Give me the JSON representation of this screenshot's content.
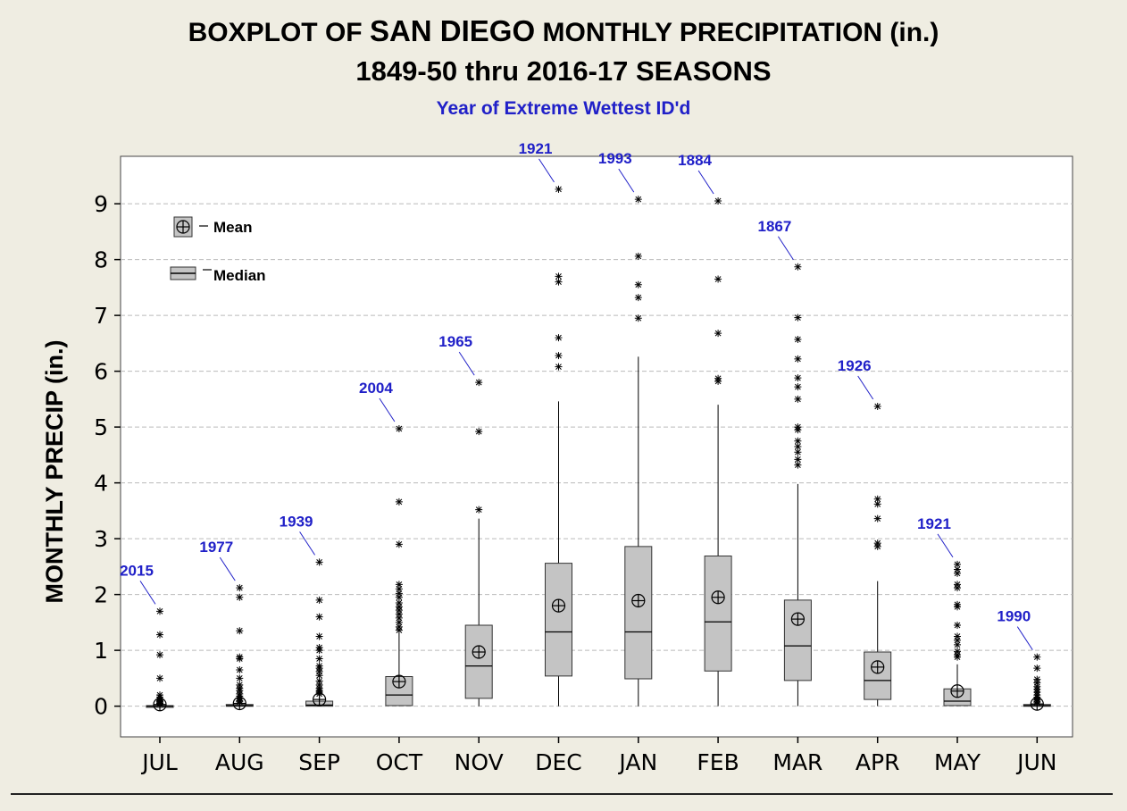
{
  "header": {
    "title_part1": "BOXPLOT OF ",
    "title_city": "SAN DIEGO",
    "title_part2": " MONTHLY PRECIPITATION (in.)",
    "subtitle": "1849-50 thru 2016-17 SEASONS",
    "note": "Year of Extreme Wettest ID'd"
  },
  "legend": {
    "mean_label": "Mean",
    "median_label": "Median"
  },
  "colors": {
    "background": "#efede2",
    "plot_bg": "#ffffff",
    "box_fill": "#c4c4c4",
    "annotation": "#2020c8",
    "grid": "#bbbbbb"
  },
  "chart_data": {
    "type": "boxplot",
    "ylabel": "MONTHLY PRECIP (in.)",
    "xlabel": "",
    "ylim": [
      -0.55,
      9.85
    ],
    "yticks": [
      0,
      1,
      2,
      3,
      4,
      5,
      6,
      7,
      8,
      9
    ],
    "grid": "horizontal dashed",
    "legend_position": "top-left",
    "categories": [
      "JUL",
      "AUG",
      "SEP",
      "OCT",
      "NOV",
      "DEC",
      "JAN",
      "FEB",
      "MAR",
      "APR",
      "MAY",
      "JUN"
    ],
    "boxes": [
      {
        "month": "JUL",
        "q1": 0,
        "median": 0,
        "q3": 0.01,
        "whisker_low": 0,
        "whisker_high": 0.02,
        "mean": 0.03,
        "outliers": [
          1.7,
          1.28,
          0.92,
          0.5,
          0.2,
          0.16,
          0.12,
          0.1,
          0.08,
          0.06,
          0.05,
          0.04
        ]
      },
      {
        "month": "AUG",
        "q1": 0,
        "median": 0.01,
        "q3": 0.03,
        "whisker_low": 0,
        "whisker_high": 0.06,
        "mean": 0.05,
        "outliers": [
          2.12,
          1.95,
          1.35,
          0.88,
          0.85,
          0.65,
          0.5,
          0.38,
          0.32,
          0.28,
          0.22,
          0.18,
          0.14,
          0.1,
          0.08
        ]
      },
      {
        "month": "SEP",
        "q1": 0,
        "median": 0.02,
        "q3": 0.09,
        "whisker_low": 0,
        "whisker_high": 0.2,
        "mean": 0.12,
        "outliers": [
          2.58,
          1.9,
          1.6,
          1.25,
          1.05,
          1.0,
          0.85,
          0.72,
          0.68,
          0.62,
          0.55,
          0.45,
          0.38,
          0.32,
          0.28,
          0.25,
          0.22
        ]
      },
      {
        "month": "OCT",
        "q1": 0.01,
        "median": 0.2,
        "q3": 0.53,
        "whisker_low": 0,
        "whisker_high": 1.3,
        "mean": 0.44,
        "outliers": [
          4.97,
          3.66,
          2.9,
          2.18,
          2.1,
          2.02,
          1.95,
          1.85,
          1.78,
          1.72,
          1.65,
          1.58,
          1.5,
          1.42,
          1.36
        ]
      },
      {
        "month": "NOV",
        "q1": 0.14,
        "median": 0.72,
        "q3": 1.45,
        "whisker_low": 0,
        "whisker_high": 3.36,
        "mean": 0.97,
        "outliers": [
          5.8,
          4.92,
          3.52
        ]
      },
      {
        "month": "DEC",
        "q1": 0.54,
        "median": 1.33,
        "q3": 2.56,
        "whisker_low": 0,
        "whisker_high": 5.46,
        "mean": 1.8,
        "outliers": [
          9.26,
          7.7,
          7.6,
          6.6,
          6.28,
          6.08
        ]
      },
      {
        "month": "JAN",
        "q1": 0.49,
        "median": 1.33,
        "q3": 2.86,
        "whisker_low": 0,
        "whisker_high": 6.26,
        "mean": 1.89,
        "outliers": [
          9.08,
          8.06,
          7.55,
          7.32,
          6.95
        ]
      },
      {
        "month": "FEB",
        "q1": 0.63,
        "median": 1.51,
        "q3": 2.69,
        "whisker_low": 0,
        "whisker_high": 5.4,
        "mean": 1.95,
        "outliers": [
          9.05,
          7.65,
          6.68,
          5.87,
          5.82
        ]
      },
      {
        "month": "MAR",
        "q1": 0.46,
        "median": 1.08,
        "q3": 1.9,
        "whisker_low": 0,
        "whisker_high": 3.98,
        "mean": 1.56,
        "outliers": [
          7.87,
          6.96,
          6.57,
          6.22,
          5.88,
          5.72,
          5.5,
          5.0,
          4.95,
          4.75,
          4.65,
          4.55,
          4.42,
          4.32
        ]
      },
      {
        "month": "APR",
        "q1": 0.12,
        "median": 0.46,
        "q3": 0.97,
        "whisker_low": 0,
        "whisker_high": 2.24,
        "mean": 0.7,
        "outliers": [
          5.37,
          3.71,
          3.62,
          3.36,
          2.92,
          2.86
        ]
      },
      {
        "month": "MAY",
        "q1": 0.01,
        "median": 0.09,
        "q3": 0.31,
        "whisker_low": 0,
        "whisker_high": 0.75,
        "mean": 0.27,
        "outliers": [
          2.54,
          2.45,
          2.38,
          2.18,
          2.12,
          1.82,
          1.78,
          1.45,
          1.25,
          1.18,
          1.1,
          0.98,
          0.92,
          0.88
        ]
      },
      {
        "month": "JUN",
        "q1": 0,
        "median": 0.01,
        "q3": 0.03,
        "whisker_low": 0,
        "whisker_high": 0.05,
        "mean": 0.04,
        "outliers": [
          0.88,
          0.68,
          0.48,
          0.42,
          0.35,
          0.3,
          0.25,
          0.2,
          0.16,
          0.12,
          0.09,
          0.07
        ]
      }
    ],
    "annotations": [
      {
        "label": "2015",
        "month": "JUL",
        "value": 1.7
      },
      {
        "label": "1977",
        "month": "AUG",
        "value": 2.12
      },
      {
        "label": "1939",
        "month": "SEP",
        "value": 2.58
      },
      {
        "label": "2004",
        "month": "OCT",
        "value": 4.97
      },
      {
        "label": "1965",
        "month": "NOV",
        "value": 5.8
      },
      {
        "label": "1921",
        "month": "DEC",
        "value": 9.26
      },
      {
        "label": "1993",
        "month": "JAN",
        "value": 9.08
      },
      {
        "label": "1884",
        "month": "FEB",
        "value": 9.05
      },
      {
        "label": "1867",
        "month": "MAR",
        "value": 7.87
      },
      {
        "label": "1926",
        "month": "APR",
        "value": 5.37
      },
      {
        "label": "1921",
        "month": "MAY",
        "value": 2.54
      },
      {
        "label": "1990",
        "month": "JUN",
        "value": 0.88
      }
    ]
  }
}
